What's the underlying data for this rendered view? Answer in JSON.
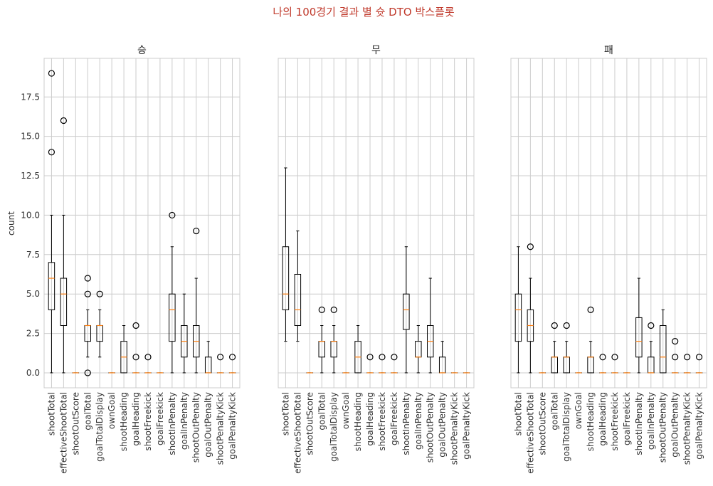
{
  "chart_data": {
    "type": "box",
    "title": "나의 100경기 결과 별 슛 DTO 박스플롯",
    "ylabel": "count",
    "ylim": [
      -0.95,
      19.95
    ],
    "yticks": [
      0.0,
      2.5,
      5.0,
      7.5,
      10.0,
      12.5,
      15.0,
      17.5
    ],
    "ytick_labels": [
      "0.0",
      "2.5",
      "5.0",
      "7.5",
      "10.0",
      "12.5",
      "15.0",
      "17.5"
    ],
    "grid": true,
    "categories": [
      "shootTotal",
      "effectiveShootTotal",
      "shootOutScore",
      "goalTotal",
      "goalTotalDisplay",
      "ownGoal",
      "shootHeading",
      "goalHeading",
      "shootFreekick",
      "goalFreekick",
      "shootInPenalty",
      "goalInPenalty",
      "shootOutPenalty",
      "goalOutPenalty",
      "shootPenaltyKick",
      "goalPenaltyKick"
    ],
    "panels": [
      {
        "title": "승",
        "boxes": [
          {
            "whislo": 0,
            "q1": 4,
            "med": 6,
            "q3": 7,
            "whishi": 10,
            "fliers": [
              14,
              19
            ]
          },
          {
            "whislo": 0,
            "q1": 3,
            "med": 5,
            "q3": 6,
            "whishi": 10,
            "fliers": [
              16
            ]
          },
          {
            "whislo": 0,
            "q1": 0,
            "med": 0,
            "q3": 0,
            "whishi": 0,
            "fliers": []
          },
          {
            "whislo": 1,
            "q1": 2,
            "med": 3,
            "q3": 3,
            "whishi": 4,
            "fliers": [
              0,
              5,
              6
            ]
          },
          {
            "whislo": 1,
            "q1": 2,
            "med": 3,
            "q3": 3,
            "whishi": 4,
            "fliers": [
              5
            ]
          },
          {
            "whislo": 0,
            "q1": 0,
            "med": 0,
            "q3": 0,
            "whishi": 0,
            "fliers": []
          },
          {
            "whislo": 0,
            "q1": 0,
            "med": 1,
            "q3": 2,
            "whishi": 3,
            "fliers": []
          },
          {
            "whislo": 0,
            "q1": 0,
            "med": 0,
            "q3": 0,
            "whishi": 0,
            "fliers": [
              1,
              3
            ]
          },
          {
            "whislo": 0,
            "q1": 0,
            "med": 0,
            "q3": 0,
            "whishi": 0,
            "fliers": [
              1
            ]
          },
          {
            "whislo": 0,
            "q1": 0,
            "med": 0,
            "q3": 0,
            "whishi": 0,
            "fliers": []
          },
          {
            "whislo": 0,
            "q1": 2,
            "med": 4,
            "q3": 5,
            "whishi": 8,
            "fliers": [
              10
            ]
          },
          {
            "whislo": 0,
            "q1": 1,
            "med": 2,
            "q3": 3,
            "whishi": 5,
            "fliers": []
          },
          {
            "whislo": 0,
            "q1": 1,
            "med": 2,
            "q3": 3,
            "whishi": 6,
            "fliers": [
              9
            ]
          },
          {
            "whislo": 0,
            "q1": 0,
            "med": 0,
            "q3": 1,
            "whishi": 2,
            "fliers": []
          },
          {
            "whislo": 0,
            "q1": 0,
            "med": 0,
            "q3": 0,
            "whishi": 0,
            "fliers": [
              1
            ]
          },
          {
            "whislo": 0,
            "q1": 0,
            "med": 0,
            "q3": 0,
            "whishi": 0,
            "fliers": [
              1
            ]
          }
        ]
      },
      {
        "title": "무",
        "boxes": [
          {
            "whislo": 2,
            "q1": 4,
            "med": 5,
            "q3": 8,
            "whishi": 13,
            "fliers": []
          },
          {
            "whislo": 2,
            "q1": 3,
            "med": 4,
            "q3": 6.25,
            "whishi": 9,
            "fliers": []
          },
          {
            "whislo": 0,
            "q1": 0,
            "med": 0,
            "q3": 0,
            "whishi": 0,
            "fliers": []
          },
          {
            "whislo": 0,
            "q1": 1,
            "med": 2,
            "q3": 2,
            "whishi": 3,
            "fliers": [
              4
            ]
          },
          {
            "whislo": 0,
            "q1": 1,
            "med": 2,
            "q3": 2,
            "whishi": 3,
            "fliers": [
              4
            ]
          },
          {
            "whislo": 0,
            "q1": 0,
            "med": 0,
            "q3": 0,
            "whishi": 0,
            "fliers": []
          },
          {
            "whislo": 0,
            "q1": 0,
            "med": 1,
            "q3": 2,
            "whishi": 3,
            "fliers": []
          },
          {
            "whislo": 0,
            "q1": 0,
            "med": 0,
            "q3": 0,
            "whishi": 0,
            "fliers": [
              1
            ]
          },
          {
            "whislo": 0,
            "q1": 0,
            "med": 0,
            "q3": 0,
            "whishi": 0,
            "fliers": [
              1
            ]
          },
          {
            "whislo": 0,
            "q1": 0,
            "med": 0,
            "q3": 0,
            "whishi": 0,
            "fliers": [
              1
            ]
          },
          {
            "whislo": 0,
            "q1": 2.75,
            "med": 4,
            "q3": 5,
            "whishi": 8,
            "fliers": []
          },
          {
            "whislo": 0,
            "q1": 1,
            "med": 1,
            "q3": 2,
            "whishi": 3,
            "fliers": []
          },
          {
            "whislo": 0,
            "q1": 1,
            "med": 2,
            "q3": 3,
            "whishi": 6,
            "fliers": []
          },
          {
            "whislo": 0,
            "q1": 0,
            "med": 0,
            "q3": 1,
            "whishi": 2,
            "fliers": []
          },
          {
            "whislo": 0,
            "q1": 0,
            "med": 0,
            "q3": 0,
            "whishi": 0,
            "fliers": []
          },
          {
            "whislo": 0,
            "q1": 0,
            "med": 0,
            "q3": 0,
            "whishi": 0,
            "fliers": []
          }
        ]
      },
      {
        "title": "패",
        "boxes": [
          {
            "whislo": 0,
            "q1": 2,
            "med": 4,
            "q3": 5,
            "whishi": 8,
            "fliers": []
          },
          {
            "whislo": 0,
            "q1": 2,
            "med": 3,
            "q3": 4,
            "whishi": 6,
            "fliers": [
              8
            ]
          },
          {
            "whislo": 0,
            "q1": 0,
            "med": 0,
            "q3": 0,
            "whishi": 0,
            "fliers": []
          },
          {
            "whislo": 0,
            "q1": 0,
            "med": 1,
            "q3": 1,
            "whishi": 2,
            "fliers": [
              3
            ]
          },
          {
            "whislo": 0,
            "q1": 0,
            "med": 1,
            "q3": 1,
            "whishi": 2,
            "fliers": [
              3
            ]
          },
          {
            "whislo": 0,
            "q1": 0,
            "med": 0,
            "q3": 0,
            "whishi": 0,
            "fliers": []
          },
          {
            "whislo": 0,
            "q1": 0,
            "med": 1,
            "q3": 1,
            "whishi": 2,
            "fliers": [
              4
            ]
          },
          {
            "whislo": 0,
            "q1": 0,
            "med": 0,
            "q3": 0,
            "whishi": 0,
            "fliers": [
              1
            ]
          },
          {
            "whislo": 0,
            "q1": 0,
            "med": 0,
            "q3": 0,
            "whishi": 0,
            "fliers": [
              1
            ]
          },
          {
            "whislo": 0,
            "q1": 0,
            "med": 0,
            "q3": 0,
            "whishi": 0,
            "fliers": []
          },
          {
            "whislo": 0,
            "q1": 1,
            "med": 2,
            "q3": 3.5,
            "whishi": 6,
            "fliers": []
          },
          {
            "whislo": 0,
            "q1": 0,
            "med": 0,
            "q3": 1,
            "whishi": 2,
            "fliers": [
              3
            ]
          },
          {
            "whislo": 0,
            "q1": 0,
            "med": 1,
            "q3": 3,
            "whishi": 4,
            "fliers": []
          },
          {
            "whislo": 0,
            "q1": 0,
            "med": 0,
            "q3": 0,
            "whishi": 0,
            "fliers": [
              1,
              2
            ]
          },
          {
            "whislo": 0,
            "q1": 0,
            "med": 0,
            "q3": 0,
            "whishi": 0,
            "fliers": [
              1
            ]
          },
          {
            "whislo": 0,
            "q1": 0,
            "med": 0,
            "q3": 0,
            "whishi": 0,
            "fliers": [
              1
            ]
          }
        ]
      }
    ],
    "colors": {
      "box": "#000000",
      "median": "#ff7f0e",
      "grid": "#cccccc",
      "title": "#c0392b"
    }
  }
}
